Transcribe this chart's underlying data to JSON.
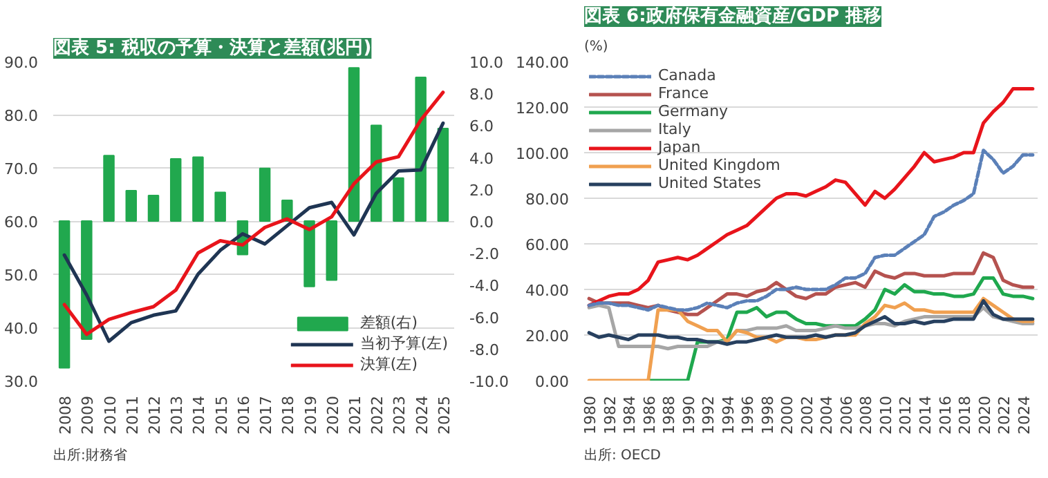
{
  "chart_data": [
    {
      "type": "line",
      "title": "図表 5: 税収の予算・決算と差額(兆円)",
      "categories": [
        "2008",
        "2009",
        "2010",
        "2011",
        "2012",
        "2013",
        "2014",
        "2015",
        "2016",
        "2017",
        "2018",
        "2019",
        "2020",
        "2021",
        "2022",
        "2023",
        "2024",
        "2025"
      ],
      "series": [
        {
          "name": "差額(右)",
          "type": "bar",
          "axis": "y2",
          "color": "#21a84e",
          "values": [
            -9.2,
            -7.4,
            4.1,
            1.9,
            1.6,
            3.9,
            4.0,
            1.8,
            -2.1,
            3.3,
            1.3,
            -4.1,
            -3.7,
            9.6,
            6.0,
            2.7,
            9.0,
            5.8
          ]
        },
        {
          "name": "当初予算(左)",
          "color": "#1f3553",
          "values": [
            53.6,
            46.1,
            37.4,
            40.9,
            42.3,
            43.1,
            50.0,
            54.5,
            57.6,
            55.7,
            59.1,
            62.5,
            63.5,
            57.4,
            65.2,
            69.4,
            69.6,
            78.4
          ]
        },
        {
          "name": "決算(左)",
          "color": "#e8141b",
          "values": [
            44.3,
            38.7,
            41.5,
            42.8,
            43.9,
            47.0,
            54.0,
            56.3,
            55.5,
            58.8,
            60.4,
            58.4,
            60.8,
            67.0,
            71.1,
            72.1,
            79.0,
            84.2
          ]
        }
      ],
      "ylim": [
        30,
        90
      ],
      "yticks": [
        {
          "value": 30,
          "label": "30.0"
        },
        {
          "value": 40,
          "label": "40.0"
        },
        {
          "value": 50,
          "label": "50.0"
        },
        {
          "value": 60,
          "label": "60.0"
        },
        {
          "value": 70,
          "label": "70.0"
        },
        {
          "value": 80,
          "label": "80.0"
        },
        {
          "value": 90,
          "label": "90.0"
        }
      ],
      "y2lim": [
        -10,
        10
      ],
      "y2ticks": [
        {
          "value": -10,
          "label": "-10.0"
        },
        {
          "value": -8,
          "label": "-8.0"
        },
        {
          "value": -6,
          "label": "-6.0"
        },
        {
          "value": -4,
          "label": "-4.0"
        },
        {
          "value": -2,
          "label": "-2.0"
        },
        {
          "value": 0,
          "label": "0.0"
        },
        {
          "value": 2,
          "label": "2.0"
        },
        {
          "value": 4,
          "label": "4.0"
        },
        {
          "value": 6,
          "label": "6.0"
        },
        {
          "value": 8,
          "label": "8.0"
        },
        {
          "value": 10,
          "label": "10.0"
        }
      ],
      "grid": "y",
      "legend": "bottom right",
      "annotations": [
        "出所:財務省"
      ]
    },
    {
      "type": "line",
      "title": "図表 6:政府保有金融資産/GDP 推移",
      "ylabel": "(%)",
      "x": [
        1980,
        1981,
        1982,
        1983,
        1984,
        1985,
        1986,
        1987,
        1988,
        1989,
        1990,
        1991,
        1992,
        1993,
        1994,
        1995,
        1996,
        1997,
        1998,
        1999,
        2000,
        2001,
        2002,
        2003,
        2004,
        2005,
        2006,
        2007,
        2008,
        2009,
        2010,
        2011,
        2012,
        2013,
        2014,
        2015,
        2016,
        2017,
        2018,
        2019,
        2020,
        2021,
        2022,
        2023,
        2024,
        2025
      ],
      "series": [
        {
          "name": "Canada",
          "color": "#5b80b8",
          "line_style": "dashed",
          "values": [
            33,
            34,
            34,
            33,
            33,
            32,
            31,
            33,
            32,
            31,
            31,
            32,
            34,
            33,
            32,
            34,
            35,
            35,
            37,
            40,
            40,
            41,
            40,
            40,
            40,
            42,
            45,
            45,
            47,
            54,
            55,
            55,
            58,
            61,
            64,
            72,
            74,
            77,
            79,
            82,
            101,
            97,
            91,
            94,
            99,
            99
          ]
        },
        {
          "name": "France",
          "color": "#b5524f",
          "values": [
            36,
            34,
            34,
            34,
            34,
            33,
            32,
            33,
            31,
            30,
            29,
            29,
            32,
            35,
            38,
            38,
            37,
            39,
            40,
            43,
            40,
            37,
            36,
            38,
            38,
            41,
            42,
            43,
            41,
            48,
            46,
            45,
            47,
            47,
            46,
            46,
            46,
            47,
            47,
            47,
            56,
            54,
            44,
            42,
            41,
            41
          ]
        },
        {
          "name": "Germany",
          "color": "#1fa84e",
          "x": [
            1986,
            1987,
            1988,
            1989,
            1990,
            1991,
            1992,
            1993,
            1994,
            1995,
            1996,
            1997,
            1998,
            1999,
            2000,
            2001,
            2002,
            2003,
            2004,
            2005,
            2006,
            2007,
            2008,
            2009,
            2010,
            2011,
            2012,
            2013,
            2014,
            2015,
            2016,
            2017,
            2018,
            2019,
            2020,
            2021,
            2022,
            2023,
            2024,
            2025
          ],
          "values": [
            0,
            0,
            0,
            0,
            0,
            17,
            17,
            17,
            18,
            30,
            30,
            32,
            28,
            30,
            30,
            27,
            25,
            25,
            24,
            24,
            24,
            24,
            27,
            31,
            40,
            38,
            42,
            39,
            39,
            38,
            38,
            37,
            37,
            38,
            45,
            45,
            38,
            37,
            37,
            36
          ]
        },
        {
          "name": "Italy",
          "color": "#a6a6a6",
          "values": [
            32,
            33,
            32,
            15,
            15,
            15,
            15,
            15,
            14,
            15,
            15,
            15,
            15,
            17,
            17,
            22,
            22,
            23,
            23,
            23,
            24,
            22,
            22,
            22,
            23,
            24,
            23,
            23,
            24,
            25,
            25,
            24,
            26,
            27,
            28,
            28,
            28,
            28,
            28,
            28,
            32,
            28,
            27,
            26,
            25,
            25
          ]
        },
        {
          "name": "Japan",
          "color": "#e8141b",
          "values": [
            33,
            35,
            37,
            38,
            38,
            40,
            44,
            52,
            53,
            54,
            53,
            55,
            58,
            61,
            64,
            66,
            68,
            72,
            76,
            80,
            82,
            82,
            81,
            83,
            85,
            88,
            87,
            82,
            77,
            83,
            80,
            84,
            89,
            94,
            100,
            96,
            97,
            98,
            100,
            100,
            113,
            118,
            122,
            128,
            128,
            128
          ]
        },
        {
          "name": "United Kingdom",
          "color": "#f0a050",
          "values": [
            0,
            0,
            0,
            0,
            0,
            0,
            0,
            31,
            31,
            31,
            26,
            24,
            22,
            22,
            17,
            22,
            21,
            19,
            19,
            17,
            19,
            19,
            18,
            18,
            19,
            20,
            20,
            20,
            25,
            28,
            33,
            32,
            34,
            31,
            31,
            30,
            30,
            30,
            30,
            30,
            36,
            33,
            30,
            27,
            26,
            26
          ]
        },
        {
          "name": "United States",
          "color": "#27405f",
          "values": [
            21,
            19,
            20,
            19,
            18,
            20,
            20,
            20,
            19,
            19,
            18,
            18,
            17,
            17,
            16,
            17,
            17,
            18,
            19,
            20,
            19,
            19,
            19,
            20,
            19,
            20,
            20,
            21,
            24,
            26,
            28,
            25,
            25,
            26,
            25,
            26,
            26,
            27,
            27,
            27,
            35,
            29,
            27,
            27,
            27,
            27
          ]
        }
      ],
      "xlim": [
        1979.5,
        2025.5
      ],
      "xticks": [
        1980,
        1982,
        1984,
        1986,
        1988,
        1990,
        1992,
        1994,
        1996,
        1998,
        2000,
        2002,
        2004,
        2006,
        2008,
        2010,
        2012,
        2014,
        2016,
        2018,
        2020,
        2022,
        2024
      ],
      "ylim": [
        0,
        140
      ],
      "yticks": [
        {
          "value": 0,
          "label": "0.00"
        },
        {
          "value": 20,
          "label": "20.00"
        },
        {
          "value": 40,
          "label": "40.00"
        },
        {
          "value": 60,
          "label": "60.00"
        },
        {
          "value": 80,
          "label": "80.00"
        },
        {
          "value": 100,
          "label": "100.00"
        },
        {
          "value": 120,
          "label": "120.00"
        },
        {
          "value": 140,
          "label": "140.00"
        }
      ],
      "grid": "y",
      "legend": "top left",
      "annotations": [
        "出所: OECD"
      ]
    }
  ]
}
